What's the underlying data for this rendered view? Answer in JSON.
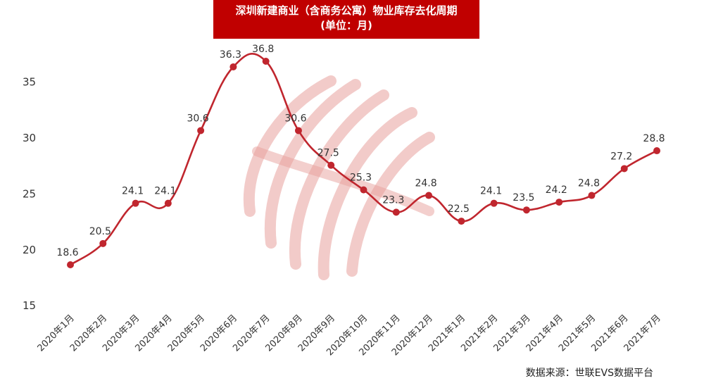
{
  "title": "深圳新建商业（含商务公寓）物业库存去化周期",
  "subtitle": "(单位：月)",
  "source": "数据来源：世联EVS数据平台",
  "colors": {
    "accent": "#c00000",
    "line": "#c0262e",
    "watermark": "#e8a09c"
  },
  "chart_data": {
    "type": "line",
    "title": "深圳新建商业（含商务公寓）物业库存去化周期",
    "subtitle": "(单位：月)",
    "xlabel": "",
    "ylabel": "",
    "ylim": [
      15,
      37
    ],
    "yticks": [
      15,
      20,
      25,
      30,
      35
    ],
    "grid": false,
    "legend": "none",
    "categories": [
      "2020年1月",
      "2020年2月",
      "2020年3月",
      "2020年4月",
      "2020年5月",
      "2020年6月",
      "2020年7月",
      "2020年8月",
      "2020年9月",
      "2020年10月",
      "2020年11月",
      "2020年12月",
      "2021年1月",
      "2021年2月",
      "2021年3月",
      "2021年4月",
      "2021年5月",
      "2021年6月",
      "2021年7月"
    ],
    "series": [
      {
        "values": [
          18.6,
          20.5,
          24.1,
          24.1,
          30.6,
          36.3,
          36.8,
          30.6,
          27.5,
          25.3,
          23.3,
          24.8,
          22.5,
          24.1,
          23.5,
          24.2,
          24.8,
          27.2,
          28.8
        ]
      }
    ]
  }
}
